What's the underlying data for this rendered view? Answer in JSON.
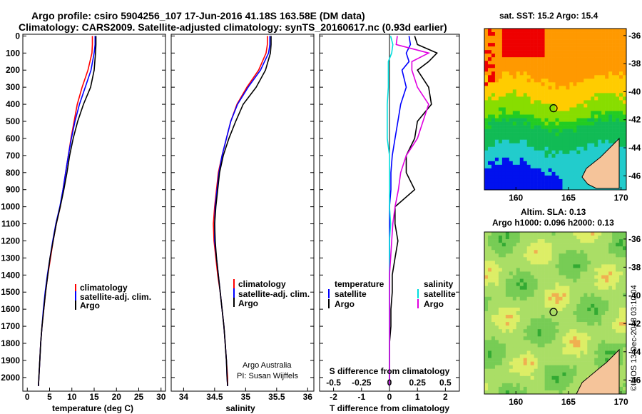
{
  "header": {
    "title_line1": "Argo profile: csiro 5904256_107 17-Jun-2016 41.18S 163.58E (DM data)",
    "title_line2": "Climatology: CARS2009. Satellite-adjusted climatology: synTS_20160617.nc (0.93d earlier)"
  },
  "map_top": {
    "title": "sat. SST: 15.2  Argo: 15.4"
  },
  "map_bottom": {
    "title_line1": "Altim. SLA: 0.13",
    "title_line2": "Argo h1000: 0.096  h2000: 0.13"
  },
  "side_stamp": "©IMOS 13-Dec-2018 03:10:04",
  "credit": {
    "line1": "Argo Australia",
    "line2": "PI: Susan Wijffels"
  },
  "colors": {
    "climatology": "#ff0000",
    "satellite": "#0000ff",
    "argo": "#000000",
    "temp_diff": "#00dede",
    "sal_diff": "#e000e0"
  },
  "icons": {
    "float_marker": "circle-marker"
  },
  "chart_data": [
    {
      "type": "line",
      "title": "",
      "xlabel": "temperature (deg C)",
      "ylabel": "",
      "xlim": [
        -1,
        31
      ],
      "ylim": [
        2080,
        -10
      ],
      "xticks": [
        "0",
        "5",
        "10",
        "15",
        "20",
        "25",
        "30"
      ],
      "yticks": [
        "0",
        "100",
        "200",
        "300",
        "400",
        "500",
        "600",
        "700",
        "800",
        "900",
        "1000",
        "1100",
        "1200",
        "1300",
        "1400",
        "1500",
        "1600",
        "1700",
        "1800",
        "1900",
        "2000"
      ],
      "legend": [
        "climatology",
        "satellite-adj. clim.",
        "Argo"
      ],
      "depth": [
        0,
        50,
        100,
        200,
        300,
        400,
        500,
        600,
        700,
        800,
        900,
        1000,
        1100,
        1200,
        1300,
        1400,
        1500,
        1600,
        1700,
        1800,
        1900,
        2000,
        2050
      ],
      "series": [
        {
          "name": "climatology",
          "values": [
            14.6,
            14.6,
            14.5,
            13.6,
            12.3,
            11.2,
            10.5,
            9.8,
            9.2,
            8.6,
            8.0,
            7.4,
            6.5,
            5.8,
            5.2,
            4.6,
            4.1,
            3.7,
            3.3,
            3.0,
            2.8,
            2.6,
            2.5
          ]
        },
        {
          "name": "satellite-adj. clim.",
          "values": [
            15.2,
            15.2,
            15.0,
            14.3,
            13.0,
            11.7,
            10.7,
            9.9,
            9.2,
            8.6,
            8.0,
            7.3,
            6.4,
            5.7,
            5.1,
            4.5,
            4.0,
            3.6,
            3.3,
            3.0,
            2.8,
            2.6,
            2.5
          ]
        },
        {
          "name": "Argo",
          "values": [
            15.4,
            15.4,
            15.3,
            15.0,
            14.2,
            12.6,
            11.3,
            10.3,
            9.5,
            8.9,
            8.2,
            7.4,
            6.5,
            5.8,
            5.1,
            4.6,
            4.1,
            3.7,
            3.3,
            3.0,
            2.8,
            2.6,
            2.5
          ]
        }
      ]
    },
    {
      "type": "line",
      "title": "",
      "xlabel": "salinity",
      "ylabel": "",
      "xlim": [
        33.8,
        36.1
      ],
      "ylim": [
        2080,
        -10
      ],
      "xticks": [
        "34",
        "34.5",
        "35",
        "35.5",
        "36"
      ],
      "legend": [
        "climatology",
        "satellite-adj. clim.",
        "Argo"
      ],
      "depth": [
        0,
        50,
        100,
        200,
        300,
        400,
        500,
        600,
        700,
        800,
        900,
        1000,
        1100,
        1200,
        1300,
        1400,
        1500,
        1600,
        1700,
        1800,
        1900,
        2000,
        2050
      ],
      "series": [
        {
          "name": "climatology",
          "values": [
            35.35,
            35.35,
            35.33,
            35.21,
            35.02,
            34.86,
            34.76,
            34.69,
            34.62,
            34.56,
            34.53,
            34.5,
            34.48,
            34.49,
            34.52,
            34.55,
            34.59,
            34.62,
            34.65,
            34.67,
            34.69,
            34.71,
            34.71
          ]
        },
        {
          "name": "satellite-adj. clim.",
          "values": [
            35.39,
            35.39,
            35.37,
            35.24,
            35.04,
            34.87,
            34.76,
            34.69,
            34.62,
            34.57,
            34.54,
            34.51,
            34.5,
            34.5,
            34.53,
            34.56,
            34.59,
            34.62,
            34.65,
            34.67,
            34.69,
            34.7,
            34.71
          ]
        },
        {
          "name": "Argo",
          "values": [
            35.41,
            35.41,
            35.4,
            35.32,
            35.17,
            34.96,
            34.84,
            34.73,
            34.64,
            34.58,
            34.55,
            34.52,
            34.5,
            34.51,
            34.53,
            34.56,
            34.59,
            34.62,
            34.65,
            34.67,
            34.69,
            34.7,
            34.71
          ]
        }
      ]
    },
    {
      "type": "line",
      "title": "",
      "xlabel": "T difference from climatology",
      "xlabel2": "S difference from climatology",
      "ylabel": "",
      "xlim": [
        -2.5,
        2.5
      ],
      "ylim": [
        2080,
        -10
      ],
      "xticks_T": [
        "-2",
        "-1",
        "0",
        "1",
        "2"
      ],
      "xticks_S": [
        "-0.5",
        "-0.25",
        "0",
        "0.25",
        "0.5"
      ],
      "legend_left_title": "temperature",
      "legend_left": [
        "satellite",
        "Argo"
      ],
      "legend_right_title": "salinity",
      "legend_right": [
        "satellite",
        "Argo"
      ],
      "depth": [
        0,
        50,
        100,
        150,
        200,
        300,
        400,
        500,
        600,
        700,
        800,
        900,
        1000,
        1100,
        1200,
        1300,
        1400,
        1500,
        1600,
        1700,
        1800,
        1900,
        2000,
        2050
      ],
      "series": [
        {
          "name": "temperature satellite",
          "values": [
            0.7,
            0.75,
            0.6,
            0.7,
            0.45,
            0.6,
            0.4,
            0.3,
            0.2,
            0.1,
            0.05,
            0.05,
            0.0,
            0.0,
            0.0,
            0.0,
            0.0,
            0.0,
            0.0,
            0.0,
            0.0,
            0.0,
            0.0,
            0.0
          ]
        },
        {
          "name": "temperature Argo",
          "values": [
            0.9,
            1.0,
            1.7,
            1.4,
            1.0,
            1.4,
            1.5,
            1.0,
            0.9,
            0.6,
            0.6,
            0.9,
            0.2,
            0.2,
            0.3,
            0.2,
            0.1,
            0.1,
            0.05,
            0.05,
            0.0,
            0.0,
            0.0,
            0.0
          ]
        },
        {
          "name": "salinity satellite",
          "values": [
            0.01,
            0.03,
            0.02,
            -0.01,
            -0.01,
            -0.01,
            -0.02,
            -0.02,
            -0.02,
            0.0,
            0.0,
            0.0,
            0.0,
            0.01,
            0.0,
            0.0,
            0.0,
            0.0,
            0.0,
            0.0,
            0.0,
            0.0,
            0.0,
            0.0
          ]
        },
        {
          "name": "salinity Argo",
          "values": [
            0.07,
            0.06,
            0.35,
            0.2,
            0.2,
            0.25,
            0.35,
            0.3,
            0.25,
            0.15,
            0.1,
            0.08,
            0.05,
            0.03,
            0.02,
            0.01,
            0.0,
            0.0,
            0.0,
            0.0,
            0.0,
            0.0,
            0.0,
            0.0
          ]
        }
      ]
    },
    {
      "type": "heatmap",
      "title": "sat. SST: 15.2  Argo: 15.4",
      "xlabel": "",
      "ylabel": "",
      "xlim": [
        157,
        170.5
      ],
      "ylim": [
        -47,
        -35.5
      ],
      "xticks": [
        "160",
        "165",
        "170"
      ],
      "yticks": [
        "-36",
        "-38",
        "-40",
        "-42",
        "-44",
        "-46"
      ],
      "float_position": {
        "lon": 163.58,
        "lat": -41.18
      }
    },
    {
      "type": "heatmap",
      "title": "Altim. SLA: 0.13",
      "xlabel": "",
      "ylabel": "",
      "xlim": [
        157,
        170.5
      ],
      "ylim": [
        -47,
        -35.5
      ],
      "xticks": [
        "160",
        "165",
        "170"
      ],
      "yticks": [
        "-36",
        "-38",
        "-40",
        "-42",
        "-44",
        "-46"
      ],
      "float_position": {
        "lon": 163.58,
        "lat": -41.18
      }
    }
  ]
}
